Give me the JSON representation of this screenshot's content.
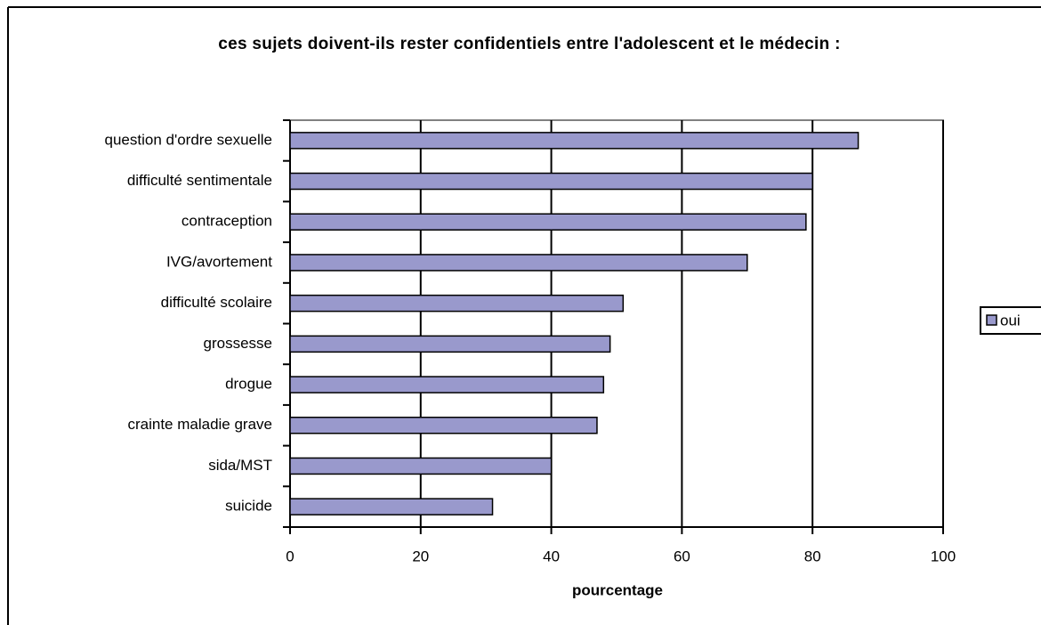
{
  "chart_data": {
    "type": "bar",
    "orientation": "horizontal",
    "title": "ces sujets doivent-ils rester confidentiels entre l'adolescent et le médecin :",
    "xlabel": "pourcentage",
    "categories": [
      "question d'ordre sexuelle",
      "difficulté sentimentale",
      "contraception",
      "IVG/avortement",
      "difficulté scolaire",
      "grossesse",
      "drogue",
      "crainte maladie grave",
      "sida/MST",
      "suicide"
    ],
    "series": [
      {
        "name": "oui",
        "color": "#9999cc",
        "values": [
          87,
          80,
          79,
          70,
          51,
          49,
          48,
          47,
          40,
          31
        ]
      }
    ],
    "xlim": [
      0,
      100
    ],
    "xticks": [
      0,
      20,
      40,
      60,
      80,
      100
    ],
    "grid": true,
    "legend": "right"
  }
}
